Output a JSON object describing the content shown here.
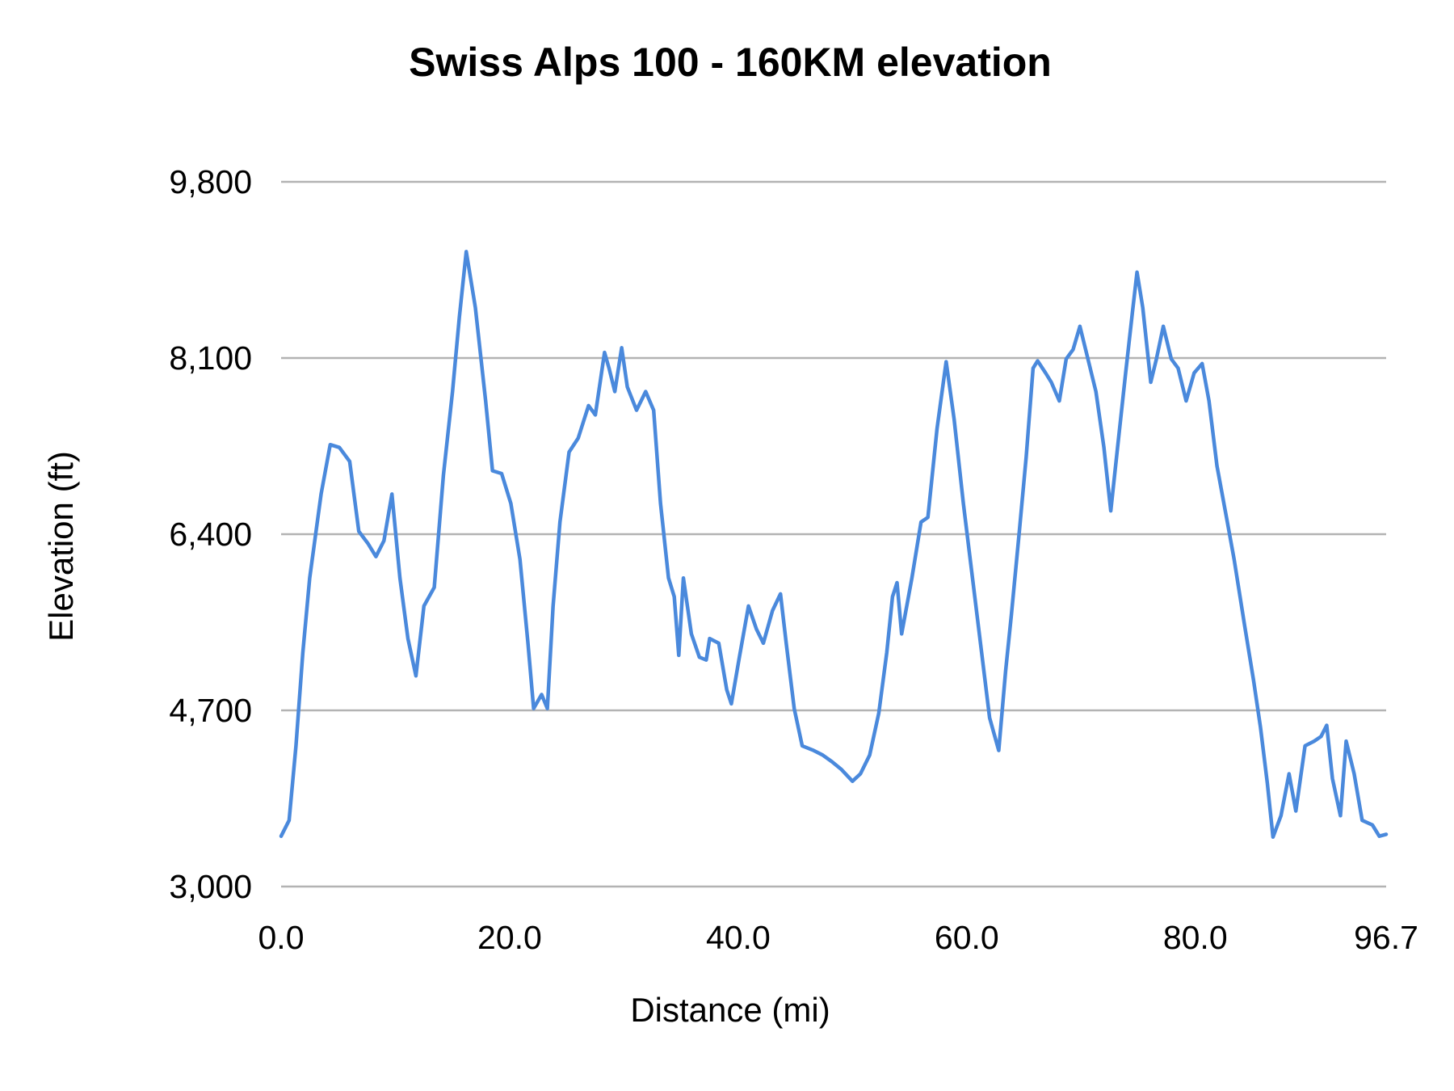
{
  "chart_data": {
    "type": "line",
    "title": "Swiss Alps 100 - 160KM elevation",
    "xlabel": "Distance (mi)",
    "ylabel": "Elevation (ft)",
    "xlim": [
      0,
      96.7
    ],
    "ylim": [
      3000,
      9800
    ],
    "xticks": [
      "0.0",
      "20.0",
      "40.0",
      "60.0",
      "80.0",
      "96.7"
    ],
    "xtick_values": [
      0,
      20,
      40,
      60,
      80,
      96.7
    ],
    "yticks": [
      "9,800",
      "8,100",
      "6,400",
      "4,700",
      "3,000"
    ],
    "ytick_values": [
      9800,
      8100,
      6400,
      4700,
      3000
    ],
    "grid": "horizontal",
    "legend": "none",
    "color": "#4a89dc",
    "series": [
      {
        "x": [
          0,
          0.7,
          1.3,
          1.9,
          2.5,
          3.5,
          4.3,
          5.1,
          6.0,
          6.8,
          7.6,
          8.3,
          9.0,
          9.7,
          10.4,
          11.1,
          11.8,
          12.5,
          13.4,
          14.2,
          15.0,
          15.6,
          16.2,
          17.0,
          17.9,
          18.5,
          19.3,
          20.1,
          20.9,
          21.6,
          22.1,
          22.8,
          23.3,
          23.8,
          24.4,
          25.2,
          26.0,
          26.9,
          27.5,
          28.3,
          28.7,
          29.2,
          29.8,
          30.3,
          31.1,
          31.9,
          32.6,
          33.2,
          33.9,
          34.4,
          34.8,
          35.2,
          35.9,
          36.6,
          37.2,
          37.5,
          38.3,
          39.0,
          39.4,
          40.1,
          40.9,
          41.6,
          42.2,
          43.0,
          43.7,
          44.2,
          44.9,
          45.6,
          46.6,
          47.4,
          48.2,
          49.0,
          50.0,
          50.7,
          51.5,
          52.3,
          53.0,
          53.5,
          53.9,
          54.3,
          55.2,
          56.0,
          56.6,
          57.4,
          58.2,
          58.9,
          59.7,
          60.5,
          61.3,
          62.0,
          62.8,
          63.4,
          63.9,
          64.6,
          65.2,
          65.8,
          66.2,
          66.9,
          67.4,
          68.1,
          68.7,
          69.3,
          69.9,
          70.5,
          71.3,
          72.0,
          72.6,
          73.2,
          73.9,
          74.5,
          74.9,
          75.4,
          76.1,
          76.6,
          77.2,
          77.9,
          78.5,
          79.2,
          79.9,
          80.6,
          81.2,
          81.9,
          82.8,
          83.4,
          84.3,
          85.1,
          85.7,
          86.3,
          86.8,
          87.5,
          88.2,
          88.8,
          89.6,
          90.4,
          91.0,
          91.5,
          92.0,
          92.7,
          93.2,
          93.9,
          94.6,
          95.5,
          96.1,
          96.7
        ],
        "y": [
          3486,
          3639,
          4358,
          5258,
          5977,
          6787,
          7264,
          7237,
          7102,
          6427,
          6310,
          6184,
          6337,
          6787,
          5977,
          5393,
          5033,
          5707,
          5887,
          6967,
          7776,
          8496,
          9126,
          8586,
          7686,
          7012,
          6985,
          6697,
          6157,
          5348,
          4718,
          4853,
          4718,
          5707,
          6517,
          7192,
          7327,
          7641,
          7551,
          8154,
          8001,
          7776,
          8199,
          7821,
          7596,
          7776,
          7596,
          6697,
          5977,
          5797,
          5231,
          5977,
          5438,
          5213,
          5186,
          5393,
          5348,
          4898,
          4763,
          5213,
          5707,
          5483,
          5348,
          5662,
          5824,
          5348,
          4718,
          4358,
          4313,
          4268,
          4205,
          4133,
          4016,
          4088,
          4268,
          4673,
          5258,
          5797,
          5932,
          5438,
          5977,
          6517,
          6562,
          7417,
          8064,
          7507,
          6697,
          5977,
          5258,
          4628,
          4313,
          5078,
          5618,
          6427,
          7147,
          8001,
          8073,
          7956,
          7866,
          7686,
          8091,
          8181,
          8406,
          8136,
          7776,
          7237,
          6625,
          7237,
          7956,
          8541,
          8928,
          8586,
          7866,
          8091,
          8406,
          8091,
          8001,
          7686,
          7956,
          8046,
          7686,
          7057,
          6517,
          6157,
          5528,
          4988,
          4538,
          3998,
          3477,
          3684,
          4088,
          3729,
          4358,
          4403,
          4448,
          4556,
          4043,
          3684,
          4403,
          4088,
          3639,
          3594,
          3486,
          3504
        ]
      }
    ]
  }
}
